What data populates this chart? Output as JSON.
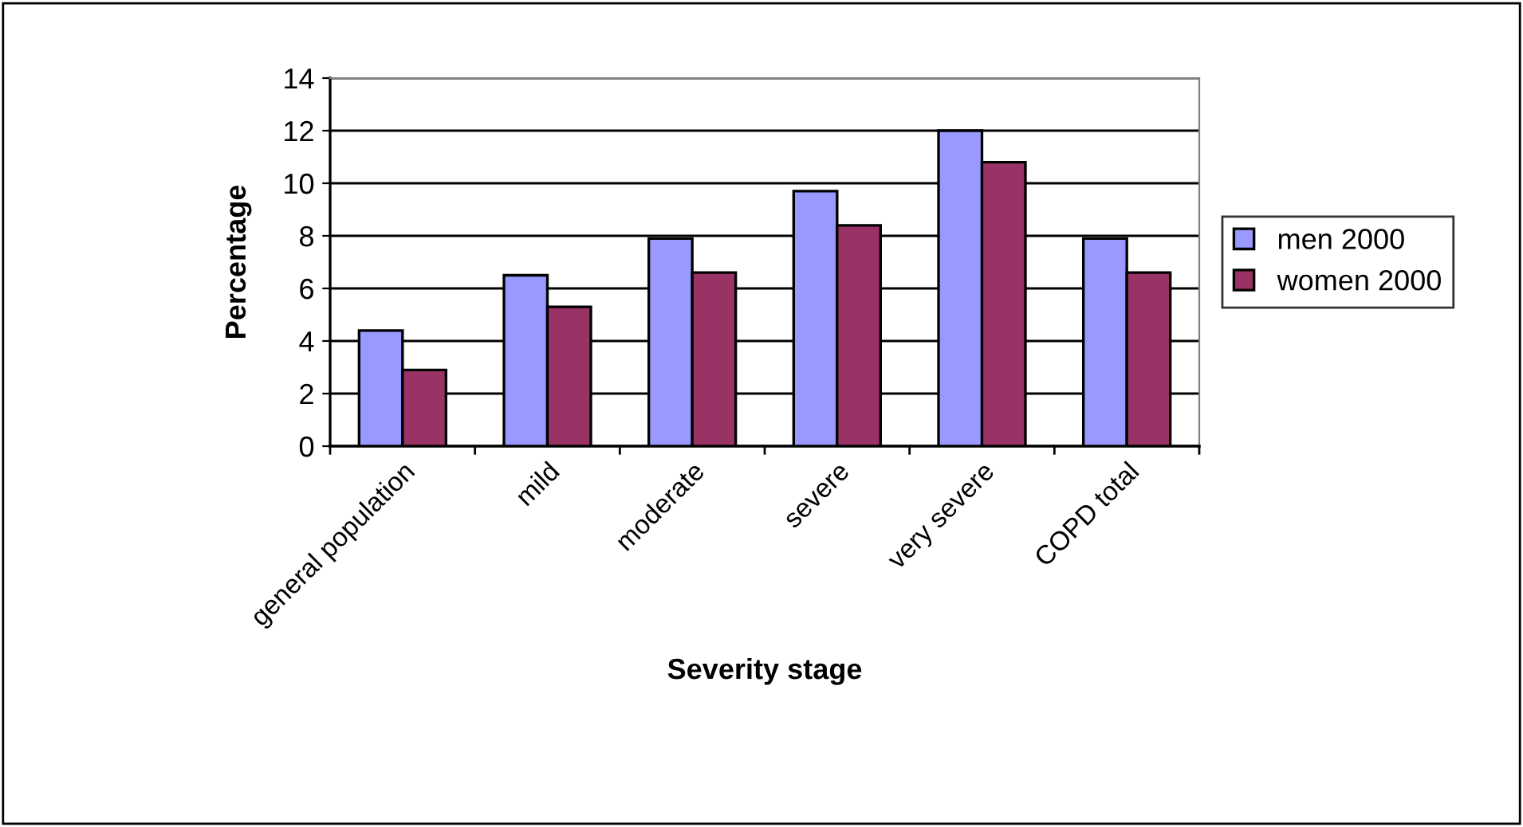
{
  "chart_data": {
    "type": "bar",
    "xlabel": "Severity stage",
    "ylabel": "Percentage",
    "categories": [
      "general population",
      "mild",
      "moderate",
      "severe",
      "very severe",
      "COPD total"
    ],
    "series": [
      {
        "name": "men 2000",
        "color": "#9999ff",
        "values": [
          4.4,
          6.5,
          7.9,
          9.7,
          12.0,
          7.9
        ]
      },
      {
        "name": "women 2000",
        "color": "#993366",
        "values": [
          2.9,
          5.3,
          6.6,
          8.4,
          10.8,
          6.6
        ]
      }
    ],
    "ylim": [
      0,
      14
    ],
    "yticks": [
      0,
      2,
      4,
      6,
      8,
      10,
      12,
      14
    ],
    "grid": "y",
    "legend": "right"
  }
}
